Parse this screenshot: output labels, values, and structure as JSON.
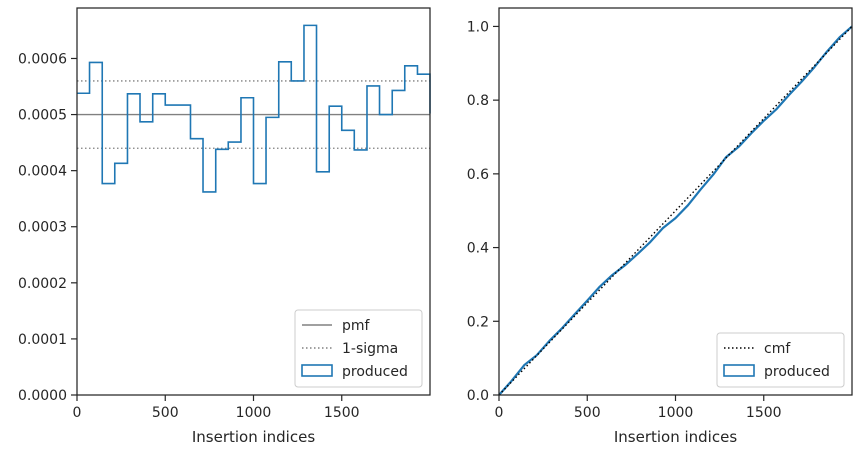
{
  "chart_data": [
    {
      "type": "step",
      "xlabel": "Insertion indices",
      "ylabel": "",
      "xlim": [
        0,
        2000
      ],
      "ylim": [
        0,
        0.00069
      ],
      "xticks": [
        0,
        500,
        1000,
        1500
      ],
      "xtick_labels": [
        "0",
        "500",
        "1000",
        "1500"
      ],
      "yticks": [
        0.0,
        0.0001,
        0.0002,
        0.0003,
        0.0004,
        0.0005,
        0.0006
      ],
      "ytick_labels": [
        "0.0000",
        "0.0001",
        "0.0002",
        "0.0003",
        "0.0004",
        "0.0005",
        "0.0006"
      ],
      "grid": false,
      "legend": {
        "position": "lower-right",
        "entries": [
          {
            "label": "pmf",
            "style": "solid",
            "color": "#808080"
          },
          {
            "label": "1-sigma",
            "style": "dotted",
            "color": "#808080"
          },
          {
            "label": "produced",
            "style": "patch",
            "color": "#1f77b4"
          }
        ]
      },
      "reference_lines": {
        "pmf": 0.0005,
        "sigma_upper": 0.00056,
        "sigma_lower": 0.00044
      },
      "bin_edges": [
        0,
        71,
        143,
        214,
        286,
        357,
        429,
        500,
        571,
        643,
        714,
        786,
        857,
        929,
        1000,
        1071,
        1143,
        1214,
        1286,
        1357,
        1429,
        1500,
        1571,
        1643,
        1714,
        1786,
        1857,
        1929,
        2000
      ],
      "values": [
        0.000538,
        0.000593,
        0.000377,
        0.000413,
        0.000537,
        0.000487,
        0.000537,
        0.000517,
        0.000517,
        0.000457,
        0.000362,
        0.000438,
        0.000451,
        0.00053,
        0.000377,
        0.000495,
        0.000594,
        0.00056,
        0.000659,
        0.000398,
        0.000515,
        0.000472,
        0.000437,
        0.000551,
        0.0005,
        0.000543,
        0.000587,
        0.000572,
        0.000502
      ]
    },
    {
      "type": "line",
      "xlabel": "Insertion indices",
      "ylabel": "",
      "xlim": [
        0,
        2000
      ],
      "ylim": [
        0,
        1.05
      ],
      "xticks": [
        0,
        500,
        1000,
        1500
      ],
      "xtick_labels": [
        "0",
        "500",
        "1000",
        "1500"
      ],
      "yticks": [
        0.0,
        0.2,
        0.4,
        0.6,
        0.8,
        1.0
      ],
      "ytick_labels": [
        "0.0",
        "0.2",
        "0.4",
        "0.6",
        "0.8",
        "1.0"
      ],
      "grid": false,
      "legend": {
        "position": "lower-right",
        "entries": [
          {
            "label": "cmf",
            "style": "dotted",
            "color": "#000000"
          },
          {
            "label": "produced",
            "style": "patch",
            "color": "#1f77b4"
          }
        ]
      },
      "cmf": {
        "x": [
          0,
          2000
        ],
        "y": [
          0,
          1.0
        ]
      },
      "produced": {
        "x": [
          0,
          71,
          143,
          214,
          286,
          357,
          429,
          500,
          571,
          643,
          714,
          786,
          857,
          929,
          1000,
          1071,
          1143,
          1214,
          1286,
          1357,
          1429,
          1500,
          1571,
          1643,
          1714,
          1786,
          1857,
          1929,
          2000
        ],
        "y": [
          0,
          0.038,
          0.081,
          0.108,
          0.147,
          0.181,
          0.219,
          0.256,
          0.294,
          0.326,
          0.352,
          0.383,
          0.415,
          0.453,
          0.48,
          0.515,
          0.558,
          0.598,
          0.645,
          0.673,
          0.71,
          0.744,
          0.775,
          0.814,
          0.85,
          0.889,
          0.931,
          0.97,
          1.0
        ]
      }
    }
  ]
}
